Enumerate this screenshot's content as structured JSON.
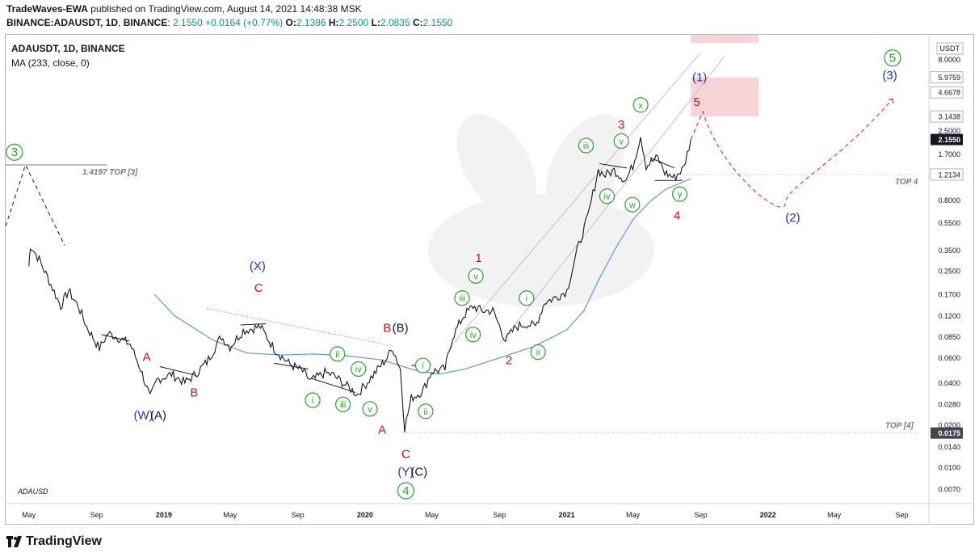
{
  "header": {
    "author": "TradeWaves-EWA",
    "published_text": "published on TradingView.com, August 14, 2021 14:48:38 MSK",
    "symbol_line": "BINANCE:ADAUSDT, 1D",
    "change": "+0.0164 (+0.77%)",
    "open_label": "O:",
    "open": "2.1386",
    "high_label": "H:",
    "high": "2.2500",
    "low_label": "L:",
    "low": "2.0835",
    "close_label": "C:",
    "close": "2.1550",
    "first_value": "2.1550"
  },
  "legend": {
    "symbol": "ADAUSDT, 1D, BINANCE",
    "indicator": "MA (233, close, 0)",
    "overlay_symbol": "ADAUSD"
  },
  "footer": {
    "brand": "TradingView"
  },
  "colors": {
    "up": "#089981",
    "blue_wave": "#2a2eb8",
    "red_wave": "#cc1111",
    "green_wave": "#2e9e2e",
    "ma": "#5b9bd5",
    "zone": "#f4c7c9"
  },
  "chart_data": {
    "type": "line",
    "scale": "log",
    "price_unit": "USDT",
    "ylim": [
      0.0055,
      12
    ],
    "x_range": [
      "2018-03-20",
      "2022-10-20"
    ],
    "price_axis_ticks": [
      "8.0000",
      "5.9759",
      "4.6678",
      "3.1438",
      "2.5000",
      "2.1550",
      "1.7000",
      "1.2134",
      "0.8000",
      "0.5500",
      "0.3500",
      "0.2500",
      "0.1700",
      "0.1200",
      "0.0850",
      "0.0600",
      "0.0400",
      "0.0280",
      "0.0200",
      "0.0175",
      "0.0140",
      "0.0100",
      "0.0070"
    ],
    "highlighted_ticks": [
      "5.9759",
      "4.6678",
      "3.1438",
      "1.2134"
    ],
    "last_price": "2.1550",
    "level_0175": "0.0175",
    "time_axis_labels": [
      {
        "d": "2018-05-01",
        "t": "May"
      },
      {
        "d": "2018-09-01",
        "t": "Sep"
      },
      {
        "d": "2019-01-01",
        "t": "2019"
      },
      {
        "d": "2019-05-01",
        "t": "May"
      },
      {
        "d": "2019-09-01",
        "t": "Sep"
      },
      {
        "d": "2020-01-01",
        "t": "2020"
      },
      {
        "d": "2020-05-01",
        "t": "May"
      },
      {
        "d": "2020-09-01",
        "t": "Sep"
      },
      {
        "d": "2021-01-01",
        "t": "2021"
      },
      {
        "d": "2021-05-01",
        "t": "May"
      },
      {
        "d": "2021-09-01",
        "t": "Sep"
      },
      {
        "d": "2022-01-01",
        "t": "2022"
      },
      {
        "d": "2022-05-01",
        "t": "May"
      },
      {
        "d": "2022-09-01",
        "t": "Sep"
      }
    ],
    "price_path": [
      [
        "2018-05-01",
        0.27
      ],
      [
        "2018-05-04",
        0.38
      ],
      [
        "2018-05-20",
        0.3
      ],
      [
        "2018-06-10",
        0.2
      ],
      [
        "2018-06-28",
        0.14
      ],
      [
        "2018-07-12",
        0.18
      ],
      [
        "2018-07-30",
        0.14
      ],
      [
        "2018-08-14",
        0.1
      ],
      [
        "2018-09-06",
        0.07
      ],
      [
        "2018-09-22",
        0.09
      ],
      [
        "2018-10-15",
        0.082
      ],
      [
        "2018-11-01",
        0.075
      ],
      [
        "2018-11-20",
        0.05
      ],
      [
        "2018-12-07",
        0.031
      ],
      [
        "2018-12-20",
        0.042
      ],
      [
        "2019-01-15",
        0.046
      ],
      [
        "2019-02-08",
        0.04
      ],
      [
        "2019-02-25",
        0.045
      ],
      [
        "2019-03-20",
        0.056
      ],
      [
        "2019-04-15",
        0.085
      ],
      [
        "2019-05-01",
        0.072
      ],
      [
        "2019-05-25",
        0.094
      ],
      [
        "2019-06-25",
        0.1
      ],
      [
        "2019-07-20",
        0.07
      ],
      [
        "2019-08-15",
        0.055
      ],
      [
        "2019-09-10",
        0.048
      ],
      [
        "2019-09-24",
        0.041
      ],
      [
        "2019-10-20",
        0.047
      ],
      [
        "2019-11-05",
        0.045
      ],
      [
        "2019-12-18",
        0.033
      ],
      [
        "2020-01-15",
        0.045
      ],
      [
        "2020-02-10",
        0.06
      ],
      [
        "2020-02-20",
        0.071
      ],
      [
        "2020-03-05",
        0.05
      ],
      [
        "2020-03-13",
        0.019
      ],
      [
        "2020-03-25",
        0.031
      ],
      [
        "2020-04-15",
        0.035
      ],
      [
        "2020-05-01",
        0.048
      ],
      [
        "2020-05-25",
        0.05
      ],
      [
        "2020-06-08",
        0.085
      ],
      [
        "2020-06-28",
        0.12
      ],
      [
        "2020-07-15",
        0.14
      ],
      [
        "2020-07-30",
        0.13
      ],
      [
        "2020-08-20",
        0.13
      ],
      [
        "2020-09-12",
        0.08
      ],
      [
        "2020-10-01",
        0.1
      ],
      [
        "2020-10-20",
        0.105
      ],
      [
        "2020-11-05",
        0.1
      ],
      [
        "2020-11-22",
        0.15
      ],
      [
        "2020-12-10",
        0.16
      ],
      [
        "2021-01-01",
        0.18
      ],
      [
        "2021-01-20",
        0.35
      ],
      [
        "2021-02-08",
        0.6
      ],
      [
        "2021-02-27",
        1.3
      ],
      [
        "2021-03-12",
        1.2
      ],
      [
        "2021-03-28",
        1.3
      ],
      [
        "2021-04-18",
        1.1
      ],
      [
        "2021-05-01",
        1.4
      ],
      [
        "2021-05-15",
        2.3
      ],
      [
        "2021-05-25",
        1.4
      ],
      [
        "2021-06-15",
        1.6
      ],
      [
        "2021-06-28",
        1.25
      ],
      [
        "2021-07-15",
        1.15
      ],
      [
        "2021-08-01",
        1.35
      ],
      [
        "2021-08-14",
        2.155
      ]
    ],
    "ma_path": [
      [
        "2018-12-15",
        0.17
      ],
      [
        "2019-01-20",
        0.12
      ],
      [
        "2019-04-01",
        0.08
      ],
      [
        "2019-06-01",
        0.065
      ],
      [
        "2019-08-01",
        0.063
      ],
      [
        "2019-10-01",
        0.064
      ],
      [
        "2019-12-01",
        0.062
      ],
      [
        "2020-02-01",
        0.058
      ],
      [
        "2020-04-01",
        0.049
      ],
      [
        "2020-05-15",
        0.046
      ],
      [
        "2020-07-01",
        0.05
      ],
      [
        "2020-09-01",
        0.06
      ],
      [
        "2020-11-01",
        0.072
      ],
      [
        "2021-01-01",
        0.095
      ],
      [
        "2021-02-01",
        0.13
      ],
      [
        "2021-03-01",
        0.22
      ],
      [
        "2021-04-01",
        0.37
      ],
      [
        "2021-05-01",
        0.58
      ],
      [
        "2021-06-01",
        0.78
      ],
      [
        "2021-07-01",
        0.96
      ],
      [
        "2021-08-14",
        1.13
      ]
    ],
    "top_levels": [
      {
        "label": "1.4197 TOP [3]",
        "price": 1.4197,
        "from": "2018-03-20",
        "to": "2018-09-20"
      },
      {
        "label": "TOP 4",
        "price": 1.2134,
        "from": "2021-08-01",
        "to": "2022-09-30"
      },
      {
        "label": "TOP [4]",
        "price": 0.0175,
        "from": "2020-03-13",
        "to": "2022-09-30"
      }
    ],
    "forecast_prev_path": [
      [
        "2018-03-20",
        0.52
      ],
      [
        "2018-04-25",
        1.4197
      ],
      [
        "2018-07-05",
        0.38
      ]
    ],
    "forecast_path": [
      [
        "2021-08-14",
        2.155
      ],
      [
        "2021-09-05",
        3.4
      ],
      [
        "2021-10-10",
        1.2
      ],
      [
        "2022-02-01",
        0.75
      ],
      [
        "2022-05-10",
        1.5
      ],
      [
        "2022-08-15",
        4.2
      ]
    ],
    "target_zones": [
      {
        "from": "2021-08-14",
        "to": "2021-12-15",
        "low": 3.1438,
        "high": 5.9759
      },
      {
        "from": "2021-08-14",
        "to": "2021-12-15",
        "low": 10.5,
        "high": 13.0
      }
    ],
    "wave_labels": [
      {
        "t": "3",
        "d": "2018-04-05",
        "p": 1.75,
        "kind": "circle-green"
      },
      {
        "t": "A",
        "d": "2018-12-01",
        "p": 0.061,
        "kind": "red"
      },
      {
        "t": "B",
        "d": "2019-02-25",
        "p": 0.034,
        "kind": "red"
      },
      {
        "t": "(W)",
        "d": "2018-11-25",
        "p": 0.0235,
        "kind": "blue"
      },
      {
        "t": "(A)",
        "d": "2018-12-22",
        "p": 0.0235,
        "kind": "black"
      },
      {
        "t": "(X)",
        "d": "2019-06-20",
        "p": 0.27,
        "kind": "blue"
      },
      {
        "t": "C",
        "d": "2019-06-22",
        "p": 0.19,
        "kind": "red"
      },
      {
        "t": "i",
        "d": "2019-09-28",
        "p": 0.03,
        "kind": "circle-green"
      },
      {
        "t": "ii",
        "d": "2019-11-12",
        "p": 0.064,
        "kind": "circle-green"
      },
      {
        "t": "iii",
        "d": "2019-11-22",
        "p": 0.028,
        "kind": "circle-green"
      },
      {
        "t": "iv",
        "d": "2019-12-20",
        "p": 0.05,
        "kind": "circle-green"
      },
      {
        "t": "v",
        "d": "2020-01-10",
        "p": 0.026,
        "kind": "circle-green"
      },
      {
        "t": "A",
        "d": "2020-02-01",
        "p": 0.0185,
        "kind": "red"
      },
      {
        "t": "B",
        "d": "2020-02-10",
        "p": 0.098,
        "kind": "red"
      },
      {
        "t": "(B)",
        "d": "2020-03-05",
        "p": 0.098,
        "kind": "black"
      },
      {
        "t": "C",
        "d": "2020-03-15",
        "p": 0.0124,
        "kind": "red"
      },
      {
        "t": "(Y)",
        "d": "2020-03-15",
        "p": 0.0093,
        "kind": "blue"
      },
      {
        "t": "(C)",
        "d": "2020-04-08",
        "p": 0.0093,
        "kind": "black"
      },
      {
        "t": "4",
        "d": "2020-03-15",
        "p": 0.0068,
        "kind": "circle-green"
      },
      {
        "t": "i",
        "d": "2020-04-15",
        "p": 0.053,
        "kind": "circle-green"
      },
      {
        "t": "ii",
        "d": "2020-04-20",
        "p": 0.025,
        "kind": "circle-green"
      },
      {
        "t": "iii",
        "d": "2020-06-25",
        "p": 0.16,
        "kind": "circle-green"
      },
      {
        "t": "iv",
        "d": "2020-07-15",
        "p": 0.088,
        "kind": "circle-green"
      },
      {
        "t": "v",
        "d": "2020-07-20",
        "p": 0.23,
        "kind": "circle-green"
      },
      {
        "t": "1",
        "d": "2020-07-25",
        "p": 0.31,
        "kind": "red"
      },
      {
        "t": "2",
        "d": "2020-09-18",
        "p": 0.058,
        "kind": "red"
      },
      {
        "t": "i",
        "d": "2020-10-20",
        "p": 0.16,
        "kind": "circle-green"
      },
      {
        "t": "ii",
        "d": "2020-11-10",
        "p": 0.066,
        "kind": "circle-green"
      },
      {
        "t": "iii",
        "d": "2021-02-05",
        "p": 1.95,
        "kind": "circle-green"
      },
      {
        "t": "iv",
        "d": "2021-03-15",
        "p": 0.85,
        "kind": "circle-green"
      },
      {
        "t": "v",
        "d": "2021-04-10",
        "p": 2.1,
        "kind": "circle-green"
      },
      {
        "t": "w",
        "d": "2021-04-30",
        "p": 0.74,
        "kind": "circle-green"
      },
      {
        "t": "3",
        "d": "2021-04-10",
        "p": 2.75,
        "kind": "red"
      },
      {
        "t": "x",
        "d": "2021-05-15",
        "p": 3.8,
        "kind": "circle-green"
      },
      {
        "t": "y",
        "d": "2021-07-25",
        "p": 0.88,
        "kind": "circle-green"
      },
      {
        "t": "4",
        "d": "2021-07-20",
        "p": 0.62,
        "kind": "red"
      },
      {
        "t": "(1)",
        "d": "2021-08-30",
        "p": 6.0,
        "kind": "blue"
      },
      {
        "t": "5",
        "d": "2021-08-25",
        "p": 4.0,
        "kind": "red"
      },
      {
        "t": "(2)",
        "d": "2022-02-15",
        "p": 0.6,
        "kind": "blue"
      },
      {
        "t": "(3)",
        "d": "2022-08-10",
        "p": 6.2,
        "kind": "blue"
      },
      {
        "t": "5",
        "d": "2022-08-15",
        "p": 8.2,
        "kind": "circle-green"
      }
    ]
  }
}
